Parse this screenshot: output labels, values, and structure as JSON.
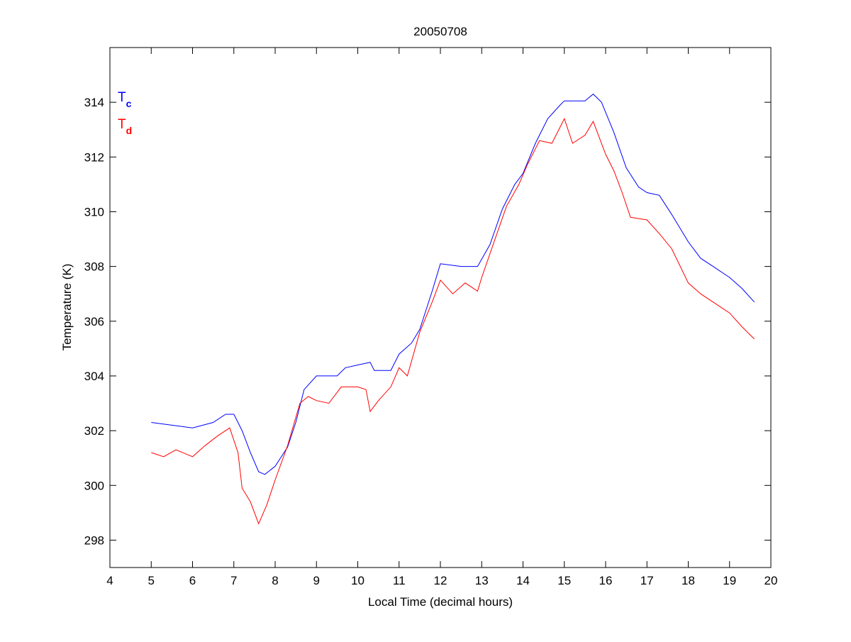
{
  "chart_data": {
    "type": "line",
    "title": "20050708",
    "xlabel": "Local Time (decimal hours)",
    "ylabel": "Temperature (K)",
    "xlim": [
      4,
      20
    ],
    "ylim": [
      297,
      316
    ],
    "xticks": [
      4,
      5,
      6,
      7,
      8,
      9,
      10,
      11,
      12,
      13,
      14,
      15,
      16,
      17,
      18,
      19,
      20
    ],
    "yticks": [
      298,
      300,
      302,
      304,
      306,
      308,
      310,
      312,
      314
    ],
    "grid": false,
    "legend_placement": "top-left",
    "series": [
      {
        "name": "T",
        "subscript": "c",
        "color": "#0000ff",
        "x": [
          5.0,
          5.5,
          6.0,
          6.5,
          6.8,
          7.0,
          7.2,
          7.4,
          7.6,
          7.75,
          8.0,
          8.3,
          8.5,
          8.7,
          9.0,
          9.5,
          9.7,
          10.0,
          10.3,
          10.4,
          10.8,
          11.0,
          11.3,
          11.5,
          11.8,
          12.0,
          12.5,
          12.9,
          13.2,
          13.5,
          13.8,
          14.0,
          14.3,
          14.6,
          14.9,
          15.0,
          15.5,
          15.7,
          15.9,
          16.2,
          16.5,
          16.8,
          17.0,
          17.3,
          17.6,
          18.0,
          18.3,
          18.6,
          19.0,
          19.3,
          19.6
        ],
        "y": [
          302.3,
          302.2,
          302.1,
          302.3,
          302.6,
          302.6,
          302.0,
          301.2,
          300.5,
          300.4,
          300.7,
          301.4,
          302.3,
          303.5,
          304.0,
          304.0,
          304.3,
          304.4,
          304.5,
          304.2,
          304.2,
          304.8,
          305.2,
          305.7,
          307.1,
          308.1,
          308.0,
          308.0,
          308.8,
          310.1,
          311.0,
          311.4,
          312.5,
          313.4,
          313.9,
          314.05,
          314.05,
          314.3,
          314.0,
          312.9,
          311.6,
          310.9,
          310.7,
          310.6,
          309.9,
          308.9,
          308.3,
          308.0,
          307.6,
          307.2,
          306.7
        ]
      },
      {
        "name": "T",
        "subscript": "d",
        "color": "#ff0000",
        "x": [
          5.0,
          5.3,
          5.6,
          6.0,
          6.3,
          6.6,
          6.9,
          7.1,
          7.2,
          7.4,
          7.6,
          7.8,
          8.0,
          8.3,
          8.6,
          8.8,
          9.0,
          9.3,
          9.6,
          10.0,
          10.2,
          10.3,
          10.5,
          10.8,
          11.0,
          11.2,
          11.5,
          11.8,
          12.0,
          12.3,
          12.6,
          12.9,
          13.0,
          13.3,
          13.6,
          13.9,
          14.1,
          14.4,
          14.7,
          15.0,
          15.2,
          15.5,
          15.7,
          16.0,
          16.2,
          16.4,
          16.6,
          17.0,
          17.3,
          17.6,
          18.0,
          18.3,
          18.6,
          19.0,
          19.3,
          19.6
        ],
        "y": [
          301.2,
          301.05,
          301.3,
          301.05,
          301.45,
          301.8,
          302.1,
          301.2,
          299.9,
          299.4,
          298.6,
          299.3,
          300.2,
          301.45,
          303.0,
          303.25,
          303.1,
          303.0,
          303.6,
          303.6,
          303.5,
          302.7,
          303.1,
          303.6,
          304.3,
          304.0,
          305.6,
          306.7,
          307.5,
          307.0,
          307.4,
          307.1,
          307.6,
          308.9,
          310.2,
          311.0,
          311.7,
          312.6,
          312.5,
          313.4,
          312.5,
          312.8,
          313.3,
          312.1,
          311.5,
          310.7,
          309.8,
          309.7,
          309.2,
          308.65,
          307.4,
          307.0,
          306.7,
          306.3,
          305.8,
          305.35
        ]
      }
    ]
  }
}
